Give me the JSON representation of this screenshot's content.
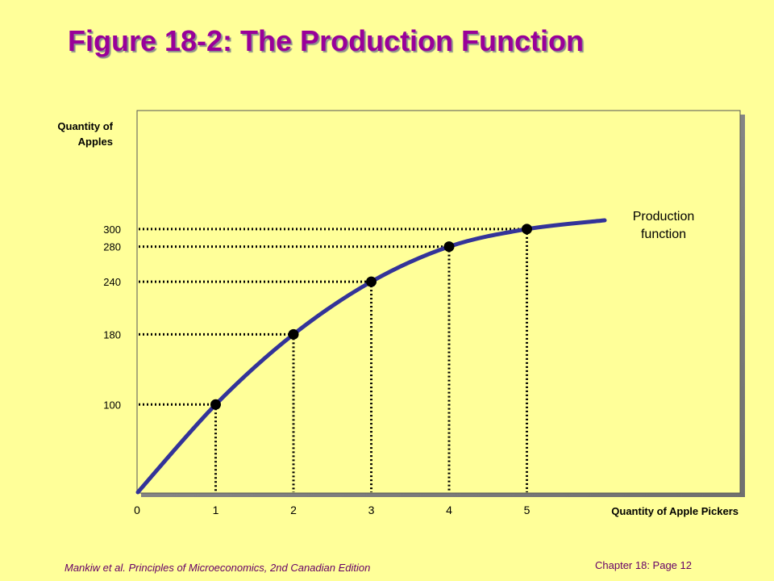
{
  "slide": {
    "title": "Figure 18-2: The Production Function",
    "footer_left": "Mankiw et al. Principles of Microeconomics, 2nd Canadian Edition",
    "footer_right": "Chapter 18: Page 12"
  },
  "colors": {
    "background": "#ffff99",
    "title": "#990099",
    "curve": "#333399",
    "footer": "#660066"
  },
  "chart_data": {
    "type": "line",
    "title": "Figure 18-2: The Production Function",
    "xlabel": "Quantity of Apple Pickers",
    "ylabel_line1": "Quantity of",
    "ylabel_line2": "Apples",
    "curve_label_line1": "Production",
    "curve_label_line2": "function",
    "series": [
      {
        "name": "Production function",
        "x": [
          0,
          1,
          2,
          3,
          4,
          5,
          6
        ],
        "y": [
          0,
          100,
          180,
          240,
          280,
          300,
          310
        ]
      }
    ],
    "highlighted_points": {
      "x": [
        1,
        2,
        3,
        4,
        5
      ],
      "y": [
        100,
        180,
        240,
        280,
        300
      ]
    },
    "x_tick_labels": [
      "0",
      "1",
      "2",
      "3",
      "4",
      "5"
    ],
    "y_tick_labels": [
      "100",
      "180",
      "240",
      "280",
      "300"
    ],
    "grid": false,
    "guide_lines": "dotted"
  }
}
